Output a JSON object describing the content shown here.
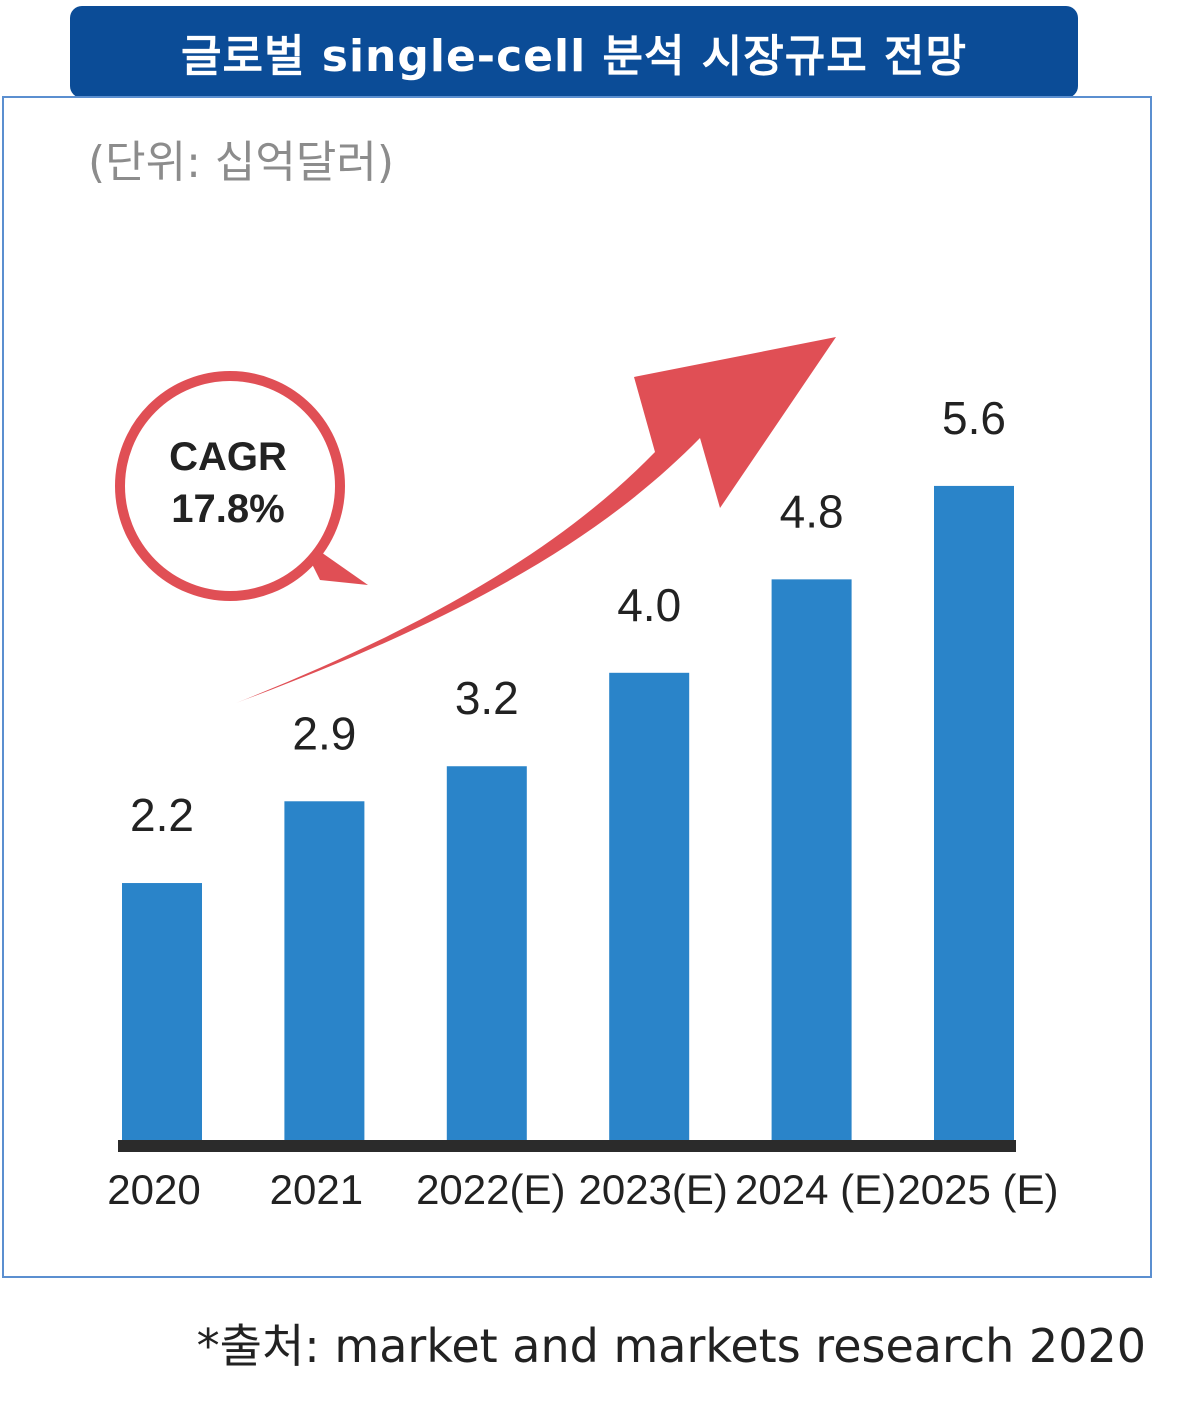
{
  "title": "글로벌 single-cell 분석 시장규모 전망",
  "unit_label": "(단위: 십억달러)",
  "source": "*출처: market and markets research 2020",
  "callout": {
    "line1": "CAGR",
    "line2": "17.8%"
  },
  "colors": {
    "title_bg": "#0b4c97",
    "bar": "#2a84c9",
    "arrow": "#e04f55",
    "axis": "#2b2b2b",
    "frame": "#5b8fd0"
  },
  "chart_data": {
    "type": "bar",
    "categories": [
      "2020",
      "2021",
      "2022(E)",
      "2023(E)",
      "2024 (E)",
      "2025 (E)"
    ],
    "values": [
      2.2,
      2.9,
      3.2,
      4.0,
      4.8,
      5.6
    ],
    "value_labels": [
      "2.2",
      "2.9",
      "3.2",
      "4.0",
      "4.8",
      "5.6"
    ],
    "title": "글로벌 single-cell 분석 시장규모 전망",
    "ylabel": "(단위: 십억달러)",
    "annotation": "CAGR 17.8%",
    "grid": false,
    "legend": "none"
  }
}
